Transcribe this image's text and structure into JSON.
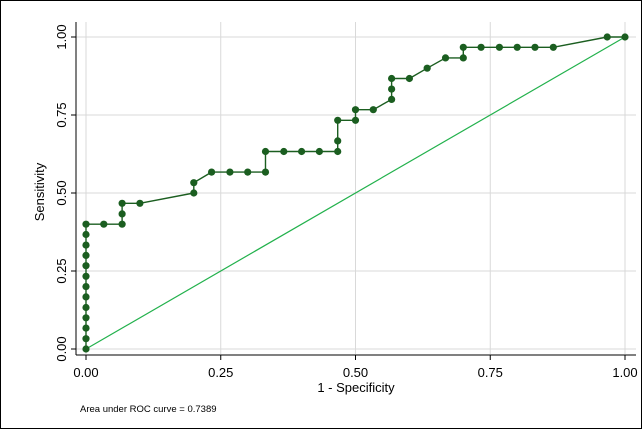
{
  "chart_data": {
    "type": "line",
    "xlabel": "1 - Specificity",
    "ylabel": "Sensitivity",
    "xlim": [
      0,
      1
    ],
    "ylim": [
      0,
      1
    ],
    "x_ticks": [
      "0.00",
      "0.25",
      "0.50",
      "0.75",
      "1.00"
    ],
    "y_ticks": [
      "0.00",
      "0.25",
      "0.50",
      "0.75",
      "1.00"
    ],
    "grid": true,
    "annotation": "Area under ROC curve = 0.7389",
    "series": [
      {
        "color": "#1b5e20",
        "marker": "circle",
        "x": [
          0,
          0,
          0,
          0,
          0,
          0,
          0,
          0,
          0,
          0,
          0,
          0,
          0,
          0.033,
          0.067,
          0.067,
          0.067,
          0.1,
          0.2,
          0.2,
          0.233,
          0.267,
          0.3,
          0.333,
          0.333,
          0.367,
          0.4,
          0.433,
          0.467,
          0.467,
          0.467,
          0.5,
          0.5,
          0.533,
          0.567,
          0.567,
          0.567,
          0.6,
          0.633,
          0.667,
          0.7,
          0.7,
          0.733,
          0.767,
          0.8,
          0.833,
          0.867,
          0.967,
          1.0
        ],
        "y": [
          0,
          0.033,
          0.067,
          0.1,
          0.133,
          0.167,
          0.2,
          0.233,
          0.267,
          0.3,
          0.333,
          0.367,
          0.4,
          0.4,
          0.4,
          0.433,
          0.467,
          0.467,
          0.5,
          0.533,
          0.567,
          0.567,
          0.567,
          0.567,
          0.633,
          0.633,
          0.633,
          0.633,
          0.633,
          0.667,
          0.733,
          0.733,
          0.767,
          0.767,
          0.8,
          0.833,
          0.867,
          0.867,
          0.9,
          0.933,
          0.933,
          0.967,
          0.967,
          0.967,
          0.967,
          0.967,
          0.967,
          1.0,
          1.0
        ]
      },
      {
        "color": "#22b14c",
        "marker": "none",
        "x": [
          0,
          1
        ],
        "y": [
          0,
          1
        ]
      }
    ]
  }
}
